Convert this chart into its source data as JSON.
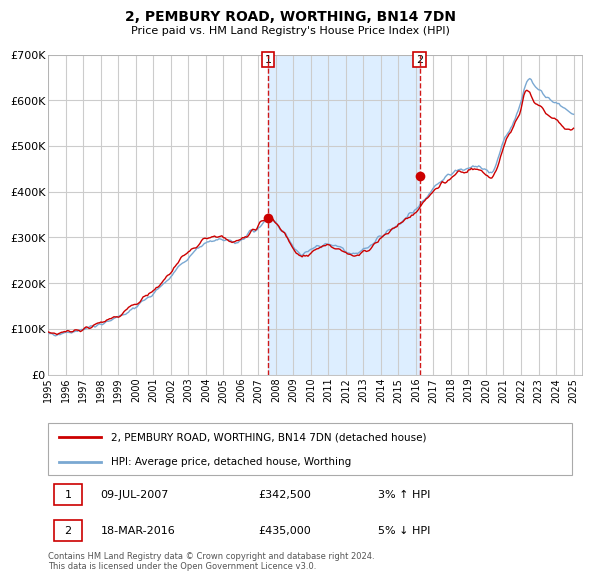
{
  "title": "2, PEMBURY ROAD, WORTHING, BN14 7DN",
  "subtitle": "Price paid vs. HM Land Registry's House Price Index (HPI)",
  "ylim": [
    0,
    700000
  ],
  "xlim_start": 1995.0,
  "xlim_end": 2025.5,
  "legend_label_red": "2, PEMBURY ROAD, WORTHING, BN14 7DN (detached house)",
  "legend_label_blue": "HPI: Average price, detached house, Worthing",
  "transaction1_date": "09-JUL-2007",
  "transaction1_price": "£342,500",
  "transaction1_hpi": "3% ↑ HPI",
  "transaction1_year": 2007.54,
  "transaction1_value": 342500,
  "transaction2_date": "18-MAR-2016",
  "transaction2_price": "£435,000",
  "transaction2_hpi": "5% ↓ HPI",
  "transaction2_year": 2016.21,
  "transaction2_value": 435000,
  "footer": "Contains HM Land Registry data © Crown copyright and database right 2024.\nThis data is licensed under the Open Government Licence v3.0.",
  "red_color": "#cc0000",
  "blue_color": "#7aa8d2",
  "highlight_color": "#ddeeff",
  "background_color": "#ffffff",
  "plot_bg_color": "#ffffff",
  "grid_color": "#cccccc",
  "ytick_vals": [
    0,
    100000,
    200000,
    300000,
    400000,
    500000,
    600000,
    700000
  ],
  "ytick_labels": [
    "£0",
    "£100K",
    "£200K",
    "£300K",
    "£400K",
    "£500K",
    "£600K",
    "£700K"
  ],
  "xtick_years": [
    1995,
    1996,
    1997,
    1998,
    1999,
    2000,
    2001,
    2002,
    2003,
    2004,
    2005,
    2006,
    2007,
    2008,
    2009,
    2010,
    2011,
    2012,
    2013,
    2014,
    2015,
    2016,
    2017,
    2018,
    2019,
    2020,
    2021,
    2022,
    2023,
    2024,
    2025
  ]
}
